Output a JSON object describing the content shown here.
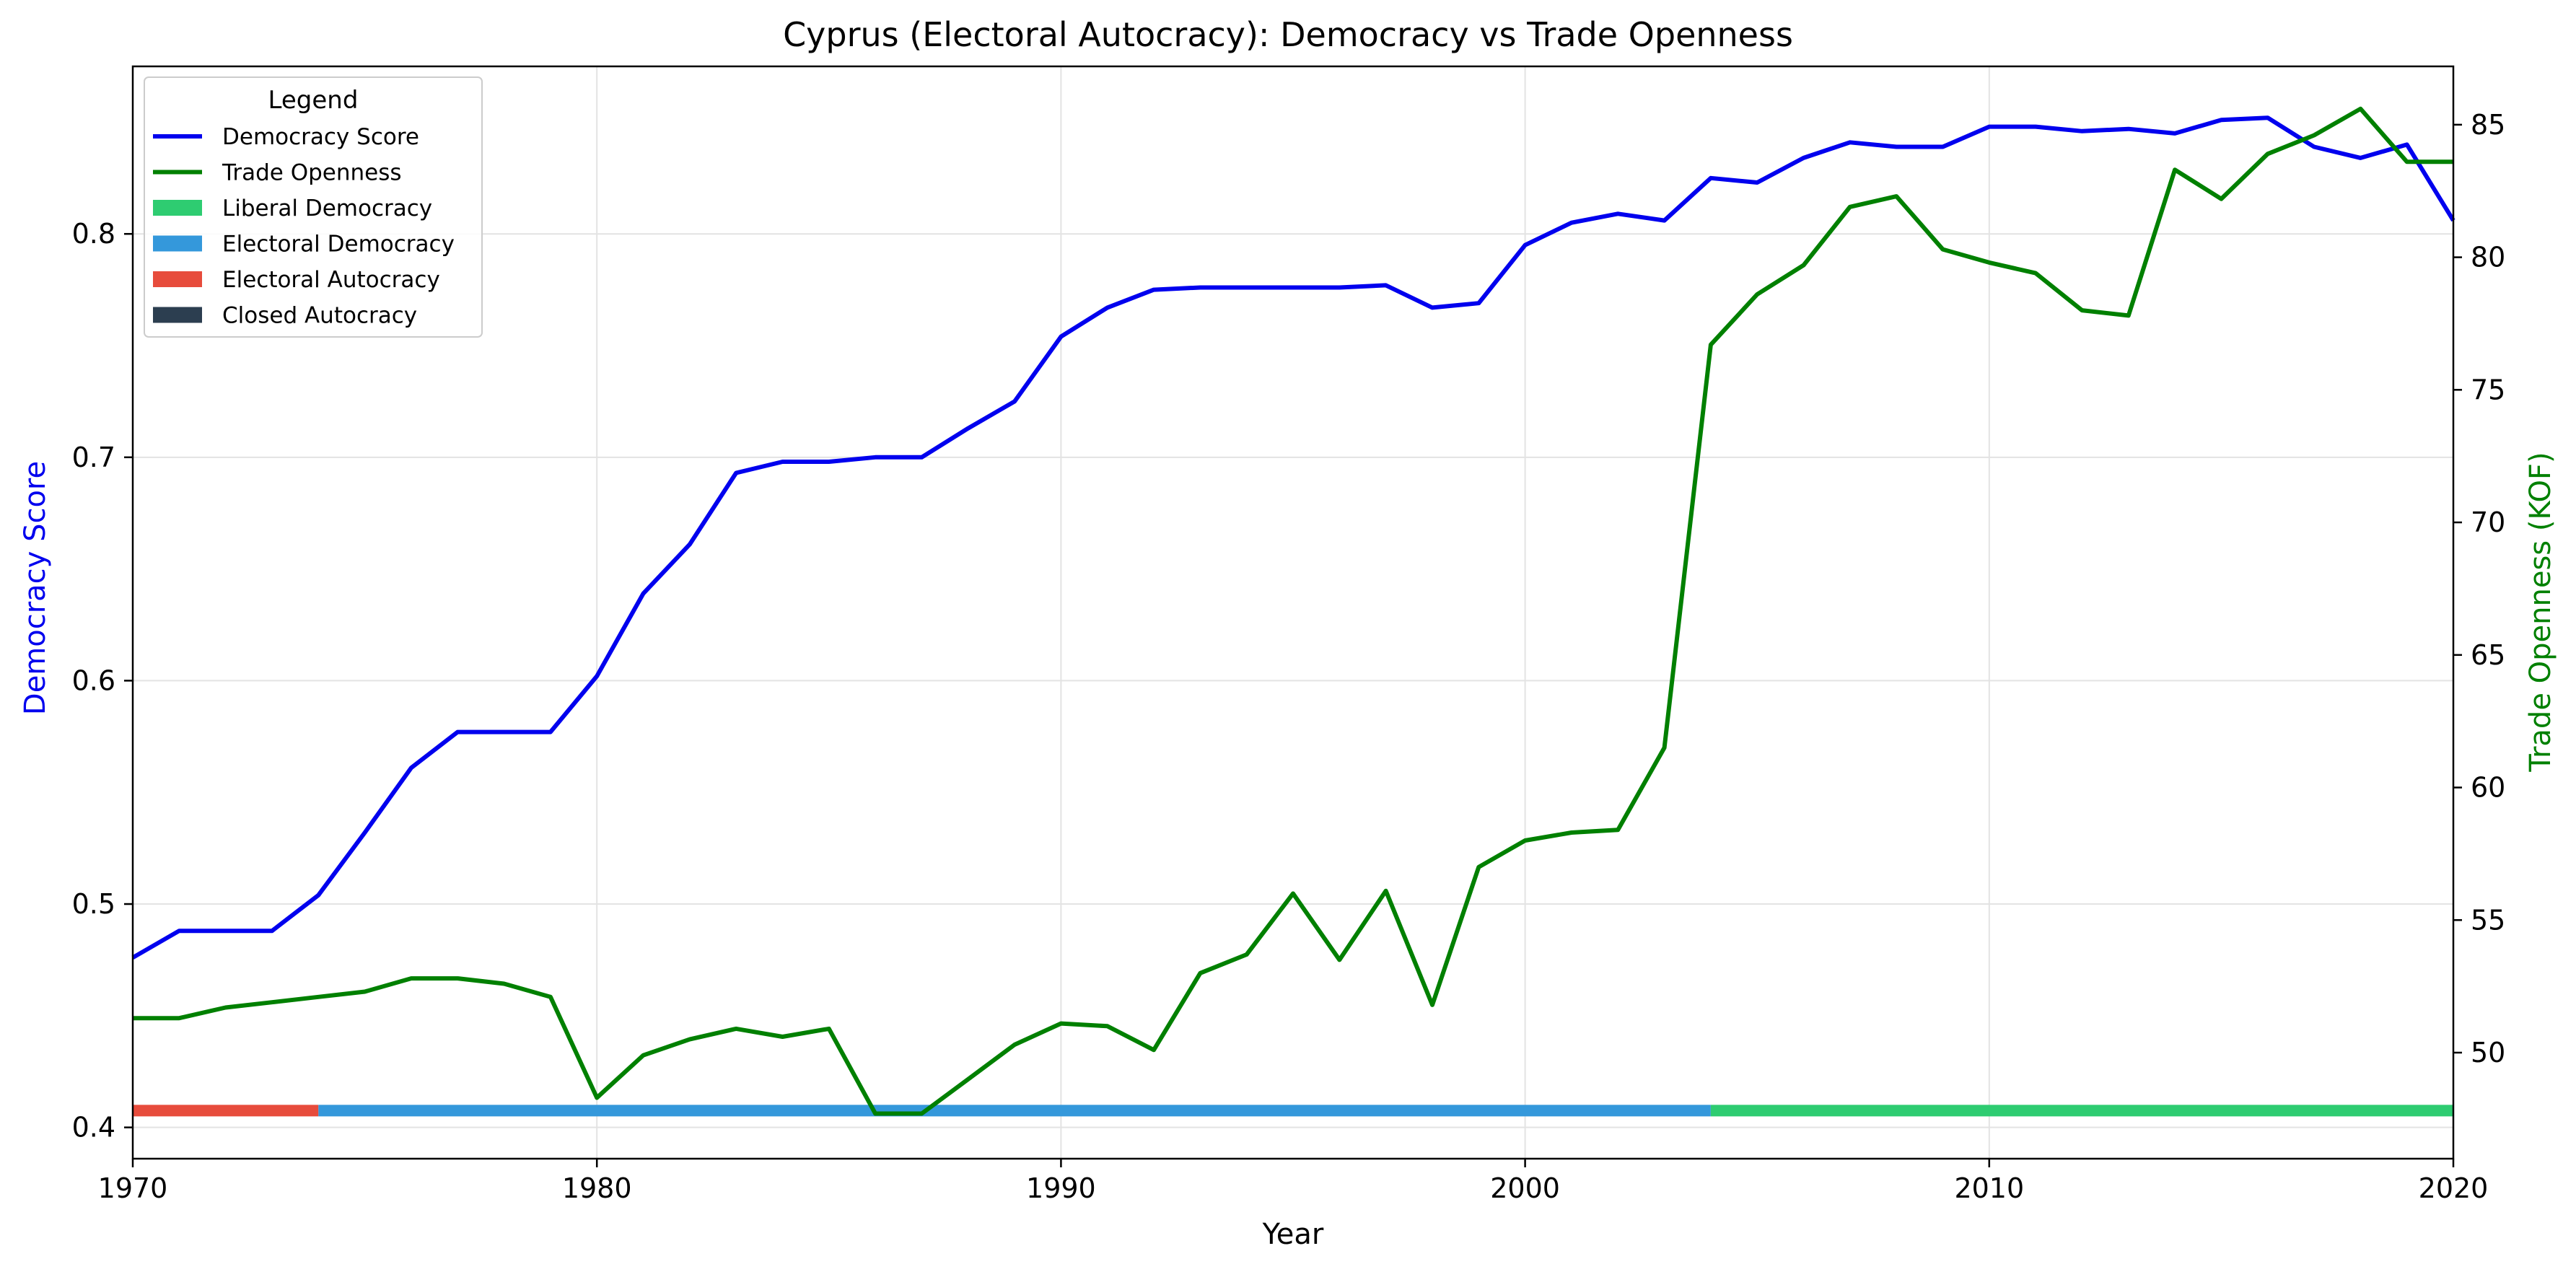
{
  "chart_data": {
    "type": "line",
    "title": "Cyprus (Electoral Autocracy): Democracy vs Trade Openness",
    "xlabel": "Year",
    "ylabel_left": "Democracy Score",
    "ylabel_right": "Trade Openness (KOF)",
    "xlim": [
      1970,
      2020
    ],
    "ylim_left": [
      0.386,
      0.875
    ],
    "ylim_right": [
      46.0,
      87.2
    ],
    "x_ticks": [
      1970,
      1980,
      1990,
      2000,
      2010,
      2020
    ],
    "y_ticks_left": [
      0.4,
      0.5,
      0.6,
      0.7,
      0.8
    ],
    "y_ticks_right": [
      50,
      55,
      60,
      65,
      70,
      75,
      80,
      85
    ],
    "grid": true,
    "legend_position": "top-left",
    "legend_title": "Legend",
    "series": [
      {
        "name": "Democracy Score",
        "axis": "left",
        "color": "#0000ee",
        "x": [
          1970,
          1971,
          1972,
          1973,
          1974,
          1975,
          1976,
          1977,
          1978,
          1979,
          1980,
          1981,
          1982,
          1983,
          1984,
          1985,
          1986,
          1987,
          1988,
          1989,
          1990,
          1991,
          1992,
          1993,
          1994,
          1995,
          1996,
          1997,
          1998,
          1999,
          2000,
          2001,
          2002,
          2003,
          2004,
          2005,
          2006,
          2007,
          2008,
          2009,
          2010,
          2011,
          2012,
          2013,
          2014,
          2015,
          2016,
          2017,
          2018,
          2019,
          2020
        ],
        "values": [
          0.476,
          0.488,
          0.488,
          0.488,
          0.504,
          0.532,
          0.561,
          0.577,
          0.577,
          0.577,
          0.602,
          0.639,
          0.661,
          0.693,
          0.698,
          0.698,
          0.7,
          0.7,
          0.713,
          0.725,
          0.754,
          0.767,
          0.775,
          0.776,
          0.776,
          0.776,
          0.776,
          0.777,
          0.767,
          0.769,
          0.795,
          0.805,
          0.809,
          0.806,
          0.825,
          0.823,
          0.834,
          0.841,
          0.839,
          0.839,
          0.848,
          0.848,
          0.846,
          0.847,
          0.845,
          0.851,
          0.852,
          0.839,
          0.834,
          0.84,
          0.806
        ]
      },
      {
        "name": "Trade Openness",
        "axis": "right",
        "color": "#008000",
        "x": [
          1970,
          1971,
          1972,
          1973,
          1974,
          1975,
          1976,
          1977,
          1978,
          1979,
          1980,
          1981,
          1982,
          1983,
          1984,
          1985,
          1986,
          1987,
          1988,
          1989,
          1990,
          1991,
          1992,
          1993,
          1994,
          1995,
          1996,
          1997,
          1998,
          1999,
          2000,
          2001,
          2002,
          2003,
          2004,
          2005,
          2006,
          2007,
          2008,
          2009,
          2010,
          2011,
          2012,
          2013,
          2014,
          2015,
          2016,
          2017,
          2018,
          2019,
          2020
        ],
        "values": [
          51.3,
          51.3,
          51.7,
          51.9,
          52.1,
          52.3,
          52.8,
          52.8,
          52.6,
          52.1,
          48.3,
          49.9,
          50.5,
          50.9,
          50.6,
          50.9,
          47.7,
          47.7,
          49.0,
          50.3,
          51.1,
          51.0,
          50.1,
          53.0,
          53.7,
          56.0,
          53.5,
          56.1,
          51.8,
          57.0,
          58.0,
          58.3,
          58.4,
          61.5,
          76.7,
          78.6,
          79.7,
          81.9,
          82.3,
          80.3,
          79.8,
          79.4,
          78.0,
          77.8,
          83.3,
          82.2,
          83.9,
          84.6,
          85.6,
          83.6,
          83.6
        ]
      }
    ],
    "regime_bands": {
      "y_value": 0.4075,
      "segments": [
        {
          "regime": "Electoral Autocracy",
          "start": 1970,
          "end": 1974,
          "color": "#e74c3c"
        },
        {
          "regime": "Electoral Democracy",
          "start": 1974,
          "end": 2004,
          "color": "#3498db"
        },
        {
          "regime": "Liberal Democracy",
          "start": 2004,
          "end": 2020,
          "color": "#2ecc71"
        }
      ]
    },
    "legend": [
      {
        "label": "Democracy Score",
        "kind": "line",
        "color": "#0000ee"
      },
      {
        "label": "Trade Openness",
        "kind": "line",
        "color": "#008000"
      },
      {
        "label": "Liberal Democracy",
        "kind": "patch",
        "color": "#2ecc71"
      },
      {
        "label": "Electoral Democracy",
        "kind": "patch",
        "color": "#3498db"
      },
      {
        "label": "Electoral Autocracy",
        "kind": "patch",
        "color": "#e74c3c"
      },
      {
        "label": "Closed Autocracy",
        "kind": "patch",
        "color": "#2c3e50"
      }
    ]
  }
}
